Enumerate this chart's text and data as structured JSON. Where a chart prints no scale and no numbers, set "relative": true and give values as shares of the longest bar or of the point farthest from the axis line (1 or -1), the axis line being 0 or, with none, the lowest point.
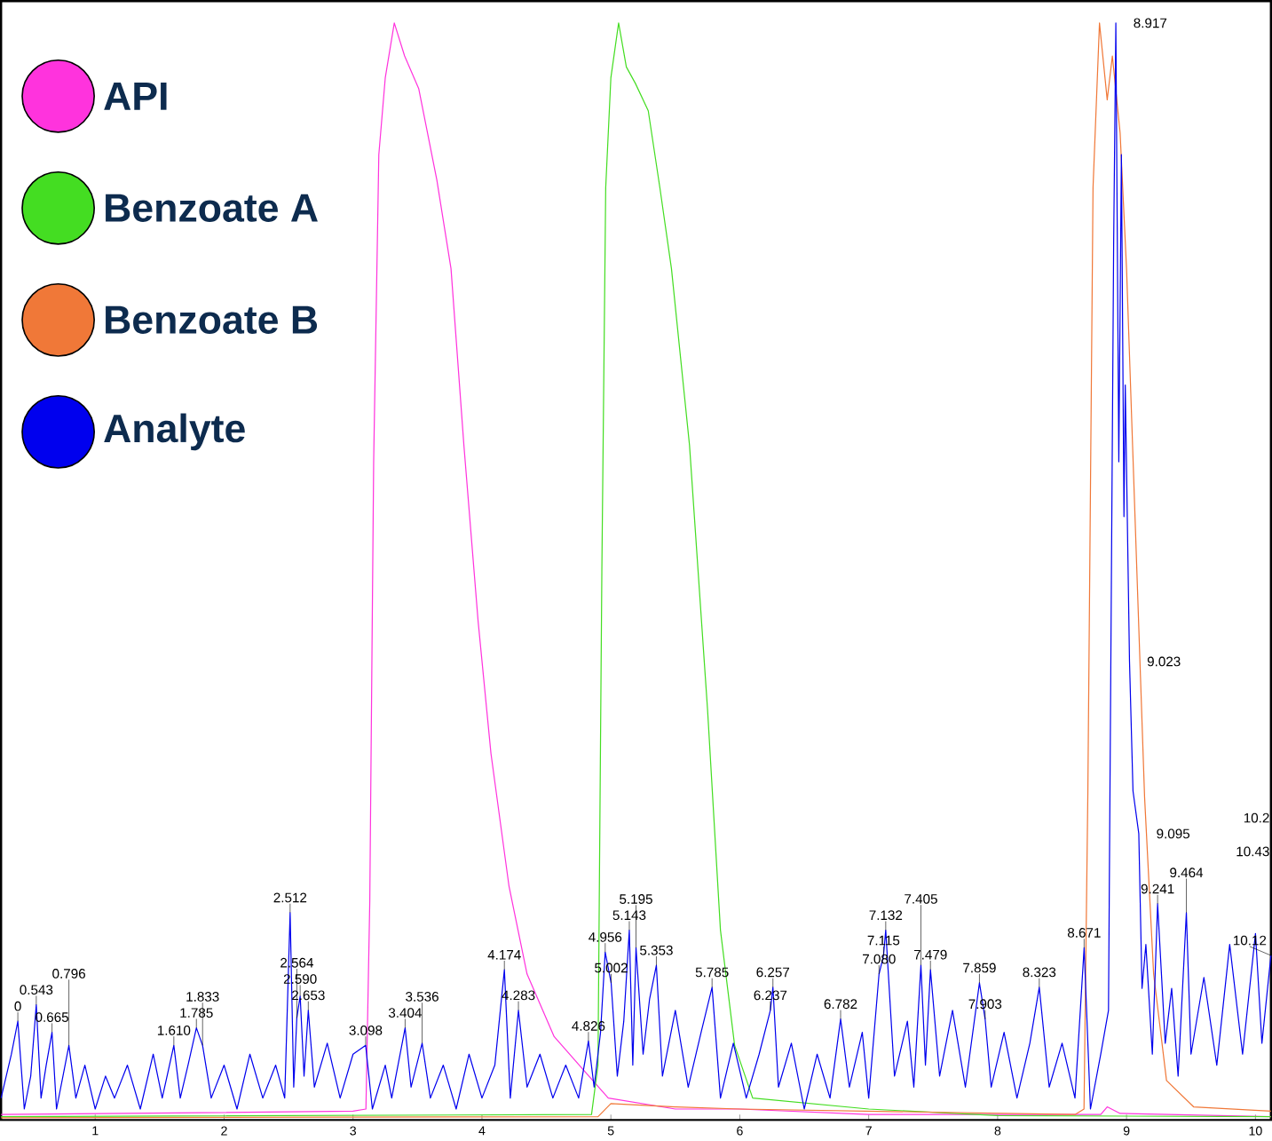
{
  "chart_data": {
    "type": "line",
    "relative": true,
    "legend": "top left",
    "xlim": [
      0.27,
      10.12
    ],
    "xticks": [
      1,
      2,
      3,
      4,
      5,
      6,
      7,
      8,
      9,
      10
    ],
    "series": [
      {
        "name": "API",
        "color": "#ff33dd",
        "x": [
          0.27,
          3.0,
          3.1,
          3.13,
          3.16,
          3.2,
          3.25,
          3.32,
          3.4,
          3.51,
          3.65,
          3.76,
          3.86,
          3.97,
          4.07,
          4.21,
          4.35,
          4.56,
          4.77,
          4.98,
          5.5,
          6.0,
          7.0,
          8.8,
          8.85,
          8.95,
          10.12
        ],
        "values": [
          0.005,
          0.008,
          0.01,
          0.2,
          0.6,
          0.88,
          0.95,
          1.0,
          0.97,
          0.94,
          0.857,
          0.776,
          0.615,
          0.455,
          0.334,
          0.213,
          0.133,
          0.076,
          0.048,
          0.02,
          0.01,
          0.01,
          0.005,
          0.005,
          0.012,
          0.006,
          0.003
        ]
      },
      {
        "name": "Benzoate A",
        "color": "#44dd22",
        "x": [
          0.27,
          4.85,
          4.9,
          4.93,
          4.96,
          5.0,
          5.06,
          5.12,
          5.19,
          5.29,
          5.38,
          5.47,
          5.61,
          5.75,
          5.85,
          5.96,
          6.1,
          7.0,
          8.0,
          10.12
        ],
        "values": [
          0.003,
          0.005,
          0.05,
          0.5,
          0.85,
          0.95,
          1.0,
          0.96,
          0.945,
          0.92,
          0.85,
          0.776,
          0.615,
          0.374,
          0.173,
          0.068,
          0.02,
          0.01,
          0.004,
          0.003
        ]
      },
      {
        "name": "Benzoate B",
        "color": "#f07838",
        "x": [
          0.27,
          4.9,
          5.0,
          5.5,
          6.0,
          8.6,
          8.67,
          8.7,
          8.74,
          8.79,
          8.85,
          8.89,
          8.95,
          9.0,
          9.07,
          9.14,
          9.21,
          9.31,
          9.52,
          10.12
        ],
        "values": [
          0.002,
          0.003,
          0.015,
          0.012,
          0.01,
          0.005,
          0.01,
          0.3,
          0.85,
          1.0,
          0.93,
          0.97,
          0.9,
          0.776,
          0.535,
          0.294,
          0.133,
          0.036,
          0.012,
          0.008
        ]
      },
      {
        "name": "Analyte",
        "color": "#0000ee",
        "x": [
          0.27,
          0.35,
          0.4,
          0.45,
          0.5,
          0.543,
          0.58,
          0.62,
          0.665,
          0.7,
          0.75,
          0.796,
          0.85,
          0.92,
          1.0,
          1.08,
          1.15,
          1.25,
          1.35,
          1.45,
          1.52,
          1.61,
          1.66,
          1.72,
          1.785,
          1.833,
          1.9,
          2.0,
          2.1,
          2.2,
          2.3,
          2.4,
          2.47,
          2.512,
          2.54,
          2.564,
          2.59,
          2.62,
          2.653,
          2.7,
          2.8,
          2.9,
          3.0,
          3.098,
          3.15,
          3.25,
          3.3,
          3.404,
          3.45,
          3.536,
          3.6,
          3.7,
          3.8,
          3.9,
          4.0,
          4.1,
          4.174,
          4.22,
          4.283,
          4.35,
          4.45,
          4.55,
          4.65,
          4.75,
          4.826,
          4.87,
          4.92,
          4.956,
          5.002,
          5.05,
          5.1,
          5.143,
          5.17,
          5.195,
          5.25,
          5.3,
          5.353,
          5.4,
          5.5,
          5.6,
          5.7,
          5.785,
          5.85,
          5.95,
          6.05,
          6.15,
          6.237,
          6.257,
          6.3,
          6.4,
          6.5,
          6.6,
          6.7,
          6.782,
          6.85,
          6.95,
          7.0,
          7.08,
          7.115,
          7.132,
          7.2,
          7.3,
          7.35,
          7.405,
          7.44,
          7.479,
          7.55,
          7.65,
          7.75,
          7.859,
          7.903,
          7.95,
          8.05,
          8.15,
          8.25,
          8.323,
          8.4,
          8.5,
          8.6,
          8.671,
          8.72,
          8.8,
          8.86,
          8.9,
          8.917,
          8.94,
          8.96,
          8.98,
          8.99,
          9.023,
          9.05,
          9.095,
          9.12,
          9.15,
          9.2,
          9.241,
          9.3,
          9.35,
          9.4,
          9.464,
          9.5,
          9.6,
          9.7,
          9.8,
          9.9,
          10.0,
          10.05,
          10.12
        ],
        "values": [
          0.02,
          0.06,
          0.09,
          0.01,
          0.04,
          0.105,
          0.02,
          0.05,
          0.08,
          0.01,
          0.04,
          0.068,
          0.02,
          0.05,
          0.01,
          0.04,
          0.02,
          0.05,
          0.01,
          0.06,
          0.02,
          0.068,
          0.02,
          0.05,
          0.084,
          0.068,
          0.02,
          0.05,
          0.01,
          0.06,
          0.02,
          0.05,
          0.02,
          0.189,
          0.03,
          0.093,
          0.113,
          0.04,
          0.1,
          0.03,
          0.07,
          0.02,
          0.06,
          0.068,
          0.01,
          0.05,
          0.02,
          0.084,
          0.03,
          0.07,
          0.02,
          0.05,
          0.01,
          0.06,
          0.02,
          0.05,
          0.137,
          0.02,
          0.1,
          0.03,
          0.06,
          0.02,
          0.05,
          0.02,
          0.072,
          0.03,
          0.08,
          0.153,
          0.125,
          0.04,
          0.09,
          0.173,
          0.05,
          0.157,
          0.06,
          0.11,
          0.141,
          0.04,
          0.1,
          0.03,
          0.08,
          0.121,
          0.02,
          0.07,
          0.02,
          0.06,
          0.1,
          0.121,
          0.03,
          0.07,
          0.01,
          0.06,
          0.02,
          0.092,
          0.03,
          0.08,
          0.02,
          0.133,
          0.15,
          0.173,
          0.04,
          0.09,
          0.03,
          0.141,
          0.05,
          0.137,
          0.04,
          0.1,
          0.03,
          0.125,
          0.092,
          0.03,
          0.08,
          0.02,
          0.07,
          0.121,
          0.03,
          0.07,
          0.02,
          0.157,
          0.01,
          0.06,
          0.1,
          0.8,
          1.0,
          0.6,
          0.88,
          0.55,
          0.67,
          0.418,
          0.3,
          0.261,
          0.12,
          0.16,
          0.06,
          0.197,
          0.07,
          0.12,
          0.04,
          0.189,
          0.06,
          0.13,
          0.05,
          0.16,
          0.06,
          0.17,
          0.07,
          0.15
        ]
      }
    ],
    "annotations": [
      {
        "text": "0",
        "x": 0.4,
        "y": 0.09
      },
      {
        "text": "0.543",
        "x": 0.543,
        "y": 0.105
      },
      {
        "text": "0.665",
        "x": 0.665,
        "y": 0.08
      },
      {
        "text": "0.796",
        "x": 0.796,
        "y": 0.068
      },
      {
        "text": "1.610",
        "x": 1.61,
        "y": 0.068
      },
      {
        "text": "1.785",
        "x": 1.785,
        "y": 0.084
      },
      {
        "text": "1.833",
        "x": 1.833,
        "y": 0.068
      },
      {
        "text": "2.512",
        "x": 2.512,
        "y": 0.189
      },
      {
        "text": "2.653",
        "x": 2.653,
        "y": 0.1
      },
      {
        "text": "2.590",
        "x": 2.59,
        "y": 0.113
      },
      {
        "text": "2.564",
        "x": 2.564,
        "y": 0.093
      },
      {
        "text": "3.098",
        "x": 3.098,
        "y": 0.068
      },
      {
        "text": "3.404",
        "x": 3.404,
        "y": 0.084
      },
      {
        "text": "3.536",
        "x": 3.536,
        "y": 0.07
      },
      {
        "text": "4.174",
        "x": 4.174,
        "y": 0.137
      },
      {
        "text": "4.283",
        "x": 4.283,
        "y": 0.1
      },
      {
        "text": "4.826",
        "x": 4.826,
        "y": 0.072
      },
      {
        "text": "4.956",
        "x": 4.956,
        "y": 0.153
      },
      {
        "text": "5.002",
        "x": 5.002,
        "y": 0.125
      },
      {
        "text": "5.143",
        "x": 5.143,
        "y": 0.173
      },
      {
        "text": "5.195",
        "x": 5.195,
        "y": 0.157
      },
      {
        "text": "5.353",
        "x": 5.353,
        "y": 0.141
      },
      {
        "text": "5.785",
        "x": 5.785,
        "y": 0.121
      },
      {
        "text": "6.257",
        "x": 6.257,
        "y": 0.121
      },
      {
        "text": "6.237",
        "x": 6.237,
        "y": 0.1
      },
      {
        "text": "6.782",
        "x": 6.782,
        "y": 0.092
      },
      {
        "text": "7.080",
        "x": 7.08,
        "y": 0.133
      },
      {
        "text": "7.132",
        "x": 7.132,
        "y": 0.173
      },
      {
        "text": "7.115",
        "x": 7.115,
        "y": 0.15
      },
      {
        "text": "7.405",
        "x": 7.405,
        "y": 0.141
      },
      {
        "text": "7.479",
        "x": 7.479,
        "y": 0.137
      },
      {
        "text": "7.859",
        "x": 7.859,
        "y": 0.125
      },
      {
        "text": "7.903",
        "x": 7.903,
        "y": 0.092
      },
      {
        "text": "8.323",
        "x": 8.323,
        "y": 0.121
      },
      {
        "text": "8.671",
        "x": 8.671,
        "y": 0.157
      },
      {
        "text": "8.917",
        "x": 8.917,
        "y": 1.0
      },
      {
        "text": "9.023",
        "x": 9.023,
        "y": 0.418
      },
      {
        "text": "9.095",
        "x": 9.095,
        "y": 0.261
      },
      {
        "text": "9.241",
        "x": 9.241,
        "y": 0.197
      },
      {
        "text": "9.464",
        "x": 9.464,
        "y": 0.189
      },
      "10.2",
      "10.43",
      {
        "text": "10.12",
        "x": 10.12,
        "y": 0.15
      }
    ]
  }
}
